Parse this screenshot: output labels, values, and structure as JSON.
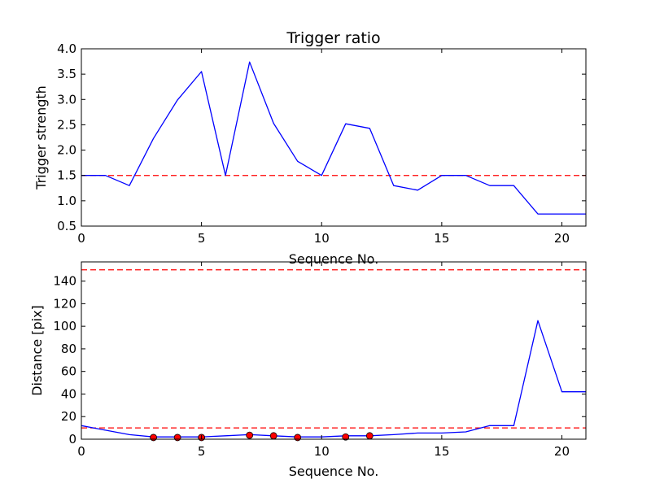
{
  "chart_data": [
    {
      "type": "line",
      "title": "Trigger ratio",
      "xlabel": "Sequence No.",
      "ylabel": "Trigger strength",
      "xlim": [
        0,
        21
      ],
      "ylim": [
        0.5,
        4.0
      ],
      "x_ticks": [
        0,
        5,
        10,
        15,
        20
      ],
      "y_ticks": [
        0.5,
        1.0,
        1.5,
        2.0,
        2.5,
        3.0,
        3.5,
        4.0
      ],
      "x_tick_labels": [
        "0",
        "5",
        "10",
        "15",
        "20"
      ],
      "y_tick_labels": [
        "0.5",
        "1.0",
        "1.5",
        "2.0",
        "2.5",
        "3.0",
        "3.5",
        "4.0"
      ],
      "grid": false,
      "series": [
        {
          "style": "solid",
          "color": "#0000ff",
          "x": [
            0,
            1,
            2,
            3,
            4,
            5,
            6,
            7,
            8,
            9,
            10,
            11,
            12,
            13,
            14,
            15,
            16,
            17,
            18,
            19,
            20,
            21
          ],
          "values": [
            1.5,
            1.5,
            1.3,
            2.23,
            2.99,
            3.55,
            1.5,
            3.74,
            2.53,
            1.78,
            1.5,
            2.52,
            2.43,
            1.3,
            1.21,
            1.5,
            1.5,
            1.3,
            1.3,
            0.74,
            0.74,
            0.74
          ]
        }
      ],
      "reference_lines": [
        {
          "axis": "y",
          "value": 1.5,
          "style": "dashed",
          "color": "#ff0000"
        }
      ]
    },
    {
      "type": "line",
      "title": "",
      "xlabel": "Sequence No.",
      "ylabel": "Distance [pix]",
      "xlim": [
        0,
        21
      ],
      "ylim": [
        0,
        157
      ],
      "x_ticks": [
        0,
        5,
        10,
        15,
        20
      ],
      "y_ticks": [
        0,
        20,
        40,
        60,
        80,
        100,
        120,
        140
      ],
      "x_tick_labels": [
        "0",
        "5",
        "10",
        "15",
        "20"
      ],
      "y_tick_labels": [
        "0",
        "20",
        "40",
        "60",
        "80",
        "100",
        "120",
        "140"
      ],
      "grid": false,
      "series": [
        {
          "style": "solid",
          "color": "#0000ff",
          "x": [
            0,
            1,
            2,
            3,
            4,
            5,
            6,
            7,
            8,
            9,
            10,
            11,
            12,
            13,
            14,
            15,
            16,
            17,
            18,
            19,
            20,
            21
          ],
          "values": [
            12,
            8,
            4,
            2,
            2,
            2,
            3,
            4,
            3,
            2,
            2,
            3,
            3,
            4,
            5.5,
            5.5,
            6.5,
            12,
            12,
            105,
            42,
            42
          ]
        },
        {
          "style": "markers",
          "color": "#ff0000",
          "x": [
            3,
            4,
            5,
            7,
            8,
            9,
            11,
            12
          ],
          "values": [
            1.5,
            1.5,
            1.5,
            3.5,
            3,
            1.5,
            2,
            3
          ]
        }
      ],
      "reference_lines": [
        {
          "axis": "y",
          "value": 150,
          "style": "dashed",
          "color": "#ff0000"
        },
        {
          "axis": "y",
          "value": 10,
          "style": "dashed",
          "color": "#ff0000"
        }
      ]
    }
  ]
}
